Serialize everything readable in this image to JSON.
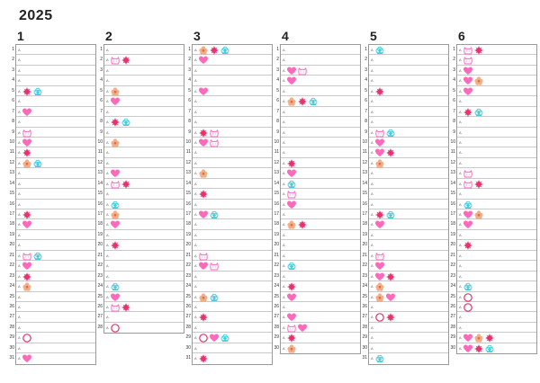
{
  "year": "2025",
  "colors": {
    "heart": "#ff4fb0",
    "sun": "#e8336e",
    "flower": "#f2a073",
    "cat": "#ff66c4",
    "cloud": "#33c7df",
    "circle": "#e0346f"
  },
  "months": [
    {
      "label": "1",
      "days": [
        {
          "n": "1",
          "w": "A",
          "marks": []
        },
        {
          "n": "2",
          "w": "A",
          "marks": []
        },
        {
          "n": "3",
          "w": "A",
          "marks": []
        },
        {
          "n": "4",
          "w": "A",
          "marks": []
        },
        {
          "n": "5",
          "w": "A",
          "marks": [
            "sun",
            "cloud"
          ]
        },
        {
          "n": "6",
          "w": "A",
          "marks": []
        },
        {
          "n": "7",
          "w": "A",
          "marks": [
            "heart"
          ]
        },
        {
          "n": "8",
          "w": "A",
          "marks": []
        },
        {
          "n": "9",
          "w": "A",
          "marks": [
            "cat"
          ]
        },
        {
          "n": "10",
          "w": "A",
          "marks": [
            "heart"
          ]
        },
        {
          "n": "11",
          "w": "A",
          "marks": [
            "sun"
          ]
        },
        {
          "n": "12",
          "w": "A",
          "marks": [
            "flower",
            "cloud"
          ]
        },
        {
          "n": "13",
          "w": "A",
          "marks": []
        },
        {
          "n": "14",
          "w": "A",
          "marks": []
        },
        {
          "n": "15",
          "w": "A",
          "marks": []
        },
        {
          "n": "16",
          "w": "A",
          "marks": []
        },
        {
          "n": "17",
          "w": "A",
          "marks": [
            "sun"
          ]
        },
        {
          "n": "18",
          "w": "A",
          "marks": [
            "heart"
          ]
        },
        {
          "n": "19",
          "w": "A",
          "marks": []
        },
        {
          "n": "20",
          "w": "A",
          "marks": []
        },
        {
          "n": "21",
          "w": "A",
          "marks": [
            "cat",
            "cloud"
          ]
        },
        {
          "n": "22",
          "w": "A",
          "marks": [
            "heart"
          ]
        },
        {
          "n": "23",
          "w": "A",
          "marks": [
            "sun"
          ]
        },
        {
          "n": "24",
          "w": "A",
          "marks": [
            "flower"
          ]
        },
        {
          "n": "25",
          "w": "A",
          "marks": []
        },
        {
          "n": "26",
          "w": "A",
          "marks": []
        },
        {
          "n": "27",
          "w": "A",
          "marks": []
        },
        {
          "n": "28",
          "w": "A",
          "marks": []
        },
        {
          "n": "29",
          "w": "A",
          "marks": [
            "circle"
          ]
        },
        {
          "n": "30",
          "w": "A",
          "marks": []
        },
        {
          "n": "31",
          "w": "A",
          "marks": [
            "heart"
          ]
        }
      ]
    },
    {
      "label": "2",
      "days": [
        {
          "n": "1",
          "w": "A",
          "marks": []
        },
        {
          "n": "2",
          "w": "A",
          "marks": [
            "cat",
            "sun"
          ]
        },
        {
          "n": "3",
          "w": "A",
          "marks": []
        },
        {
          "n": "4",
          "w": "A",
          "marks": []
        },
        {
          "n": "5",
          "w": "A",
          "marks": [
            "flower"
          ]
        },
        {
          "n": "6",
          "w": "A",
          "marks": [
            "heart"
          ]
        },
        {
          "n": "7",
          "w": "A",
          "marks": []
        },
        {
          "n": "8",
          "w": "A",
          "marks": [
            "sun",
            "cloud"
          ]
        },
        {
          "n": "9",
          "w": "A",
          "marks": []
        },
        {
          "n": "10",
          "w": "A",
          "marks": [
            "flower"
          ]
        },
        {
          "n": "11",
          "w": "A",
          "marks": []
        },
        {
          "n": "12",
          "w": "A",
          "marks": []
        },
        {
          "n": "13",
          "w": "A",
          "marks": [
            "heart"
          ]
        },
        {
          "n": "14",
          "w": "A",
          "marks": [
            "cat",
            "sun"
          ]
        },
        {
          "n": "15",
          "w": "A",
          "marks": []
        },
        {
          "n": "16",
          "w": "A",
          "marks": [
            "cloud"
          ]
        },
        {
          "n": "17",
          "w": "A",
          "marks": [
            "flower"
          ]
        },
        {
          "n": "18",
          "w": "A",
          "marks": [
            "heart"
          ]
        },
        {
          "n": "19",
          "w": "A",
          "marks": []
        },
        {
          "n": "20",
          "w": "A",
          "marks": [
            "sun"
          ]
        },
        {
          "n": "21",
          "w": "A",
          "marks": []
        },
        {
          "n": "22",
          "w": "A",
          "marks": []
        },
        {
          "n": "23",
          "w": "A",
          "marks": []
        },
        {
          "n": "24",
          "w": "A",
          "marks": [
            "cloud"
          ]
        },
        {
          "n": "25",
          "w": "A",
          "marks": [
            "heart"
          ]
        },
        {
          "n": "26",
          "w": "A",
          "marks": [
            "cat",
            "sun"
          ]
        },
        {
          "n": "27",
          "w": "A",
          "marks": []
        },
        {
          "n": "28",
          "w": "A",
          "marks": [
            "circle"
          ]
        }
      ]
    },
    {
      "label": "3",
      "days": [
        {
          "n": "1",
          "w": "A",
          "marks": [
            "flower",
            "sun",
            "cloud"
          ]
        },
        {
          "n": "2",
          "w": "A",
          "marks": [
            "heart"
          ]
        },
        {
          "n": "3",
          "w": "A",
          "marks": []
        },
        {
          "n": "4",
          "w": "A",
          "marks": []
        },
        {
          "n": "5",
          "w": "A",
          "marks": [
            "heart"
          ]
        },
        {
          "n": "6",
          "w": "A",
          "marks": []
        },
        {
          "n": "7",
          "w": "A",
          "marks": []
        },
        {
          "n": "8",
          "w": "A",
          "marks": []
        },
        {
          "n": "9",
          "w": "A",
          "marks": [
            "sun",
            "cat"
          ]
        },
        {
          "n": "10",
          "w": "A",
          "marks": [
            "heart",
            "cat"
          ]
        },
        {
          "n": "11",
          "w": "A",
          "marks": []
        },
        {
          "n": "12",
          "w": "A",
          "marks": []
        },
        {
          "n": "13",
          "w": "A",
          "marks": [
            "flower"
          ]
        },
        {
          "n": "14",
          "w": "A",
          "marks": []
        },
        {
          "n": "15",
          "w": "A",
          "marks": [
            "sun"
          ]
        },
        {
          "n": "16",
          "w": "A",
          "marks": []
        },
        {
          "n": "17",
          "w": "A",
          "marks": [
            "heart",
            "cloud"
          ]
        },
        {
          "n": "18",
          "w": "A",
          "marks": []
        },
        {
          "n": "19",
          "w": "A",
          "marks": []
        },
        {
          "n": "20",
          "w": "A",
          "marks": []
        },
        {
          "n": "21",
          "w": "A",
          "marks": [
            "cat"
          ]
        },
        {
          "n": "22",
          "w": "A",
          "marks": [
            "heart",
            "cat"
          ]
        },
        {
          "n": "23",
          "w": "A",
          "marks": []
        },
        {
          "n": "24",
          "w": "A",
          "marks": []
        },
        {
          "n": "25",
          "w": "A",
          "marks": [
            "flower",
            "cloud"
          ]
        },
        {
          "n": "26",
          "w": "A",
          "marks": []
        },
        {
          "n": "27",
          "w": "A",
          "marks": [
            "sun"
          ]
        },
        {
          "n": "28",
          "w": "A",
          "marks": []
        },
        {
          "n": "29",
          "w": "A",
          "marks": [
            "circle",
            "heart",
            "cloud"
          ]
        },
        {
          "n": "30",
          "w": "A",
          "marks": []
        },
        {
          "n": "31",
          "w": "A",
          "marks": [
            "sun"
          ]
        }
      ]
    },
    {
      "label": "4",
      "days": [
        {
          "n": "1",
          "w": "A",
          "marks": []
        },
        {
          "n": "2",
          "w": "A",
          "marks": []
        },
        {
          "n": "3",
          "w": "A",
          "marks": [
            "heart",
            "cat"
          ]
        },
        {
          "n": "4",
          "w": "A",
          "marks": [
            "heart"
          ]
        },
        {
          "n": "5",
          "w": "A",
          "marks": []
        },
        {
          "n": "6",
          "w": "A",
          "marks": [
            "flower",
            "sun",
            "cloud"
          ]
        },
        {
          "n": "7",
          "w": "A",
          "marks": []
        },
        {
          "n": "8",
          "w": "A",
          "marks": []
        },
        {
          "n": "9",
          "w": "A",
          "marks": []
        },
        {
          "n": "10",
          "w": "A",
          "marks": []
        },
        {
          "n": "11",
          "w": "A",
          "marks": []
        },
        {
          "n": "12",
          "w": "A",
          "marks": [
            "sun"
          ]
        },
        {
          "n": "13",
          "w": "A",
          "marks": [
            "heart"
          ]
        },
        {
          "n": "14",
          "w": "A",
          "marks": [
            "cloud"
          ]
        },
        {
          "n": "15",
          "w": "A",
          "marks": [
            "cat"
          ]
        },
        {
          "n": "16",
          "w": "A",
          "marks": [
            "heart"
          ]
        },
        {
          "n": "17",
          "w": "A",
          "marks": []
        },
        {
          "n": "18",
          "w": "A",
          "marks": [
            "flower",
            "sun"
          ]
        },
        {
          "n": "19",
          "w": "A",
          "marks": []
        },
        {
          "n": "20",
          "w": "A",
          "marks": []
        },
        {
          "n": "21",
          "w": "A",
          "marks": []
        },
        {
          "n": "22",
          "w": "A",
          "marks": [
            "cloud"
          ]
        },
        {
          "n": "23",
          "w": "A",
          "marks": []
        },
        {
          "n": "24",
          "w": "A",
          "marks": [
            "sun"
          ]
        },
        {
          "n": "25",
          "w": "A",
          "marks": [
            "heart"
          ]
        },
        {
          "n": "26",
          "w": "A",
          "marks": []
        },
        {
          "n": "27",
          "w": "A",
          "marks": [
            "heart"
          ]
        },
        {
          "n": "28",
          "w": "A",
          "marks": [
            "cat",
            "heart"
          ]
        },
        {
          "n": "29",
          "w": "A",
          "marks": [
            "sun"
          ]
        },
        {
          "n": "30",
          "w": "A",
          "marks": [
            "flower"
          ]
        }
      ]
    },
    {
      "label": "5",
      "days": [
        {
          "n": "1",
          "w": "A",
          "marks": [
            "cloud"
          ]
        },
        {
          "n": "2",
          "w": "A",
          "marks": []
        },
        {
          "n": "3",
          "w": "A",
          "marks": []
        },
        {
          "n": "4",
          "w": "A",
          "marks": []
        },
        {
          "n": "5",
          "w": "A",
          "marks": [
            "sun"
          ]
        },
        {
          "n": "6",
          "w": "A",
          "marks": []
        },
        {
          "n": "7",
          "w": "A",
          "marks": []
        },
        {
          "n": "8",
          "w": "A",
          "marks": []
        },
        {
          "n": "9",
          "w": "A",
          "marks": [
            "cat",
            "cloud"
          ]
        },
        {
          "n": "10",
          "w": "A",
          "marks": [
            "heart"
          ]
        },
        {
          "n": "11",
          "w": "A",
          "marks": [
            "heart",
            "sun"
          ]
        },
        {
          "n": "12",
          "w": "A",
          "marks": [
            "flower"
          ]
        },
        {
          "n": "13",
          "w": "A",
          "marks": []
        },
        {
          "n": "14",
          "w": "A",
          "marks": []
        },
        {
          "n": "15",
          "w": "A",
          "marks": []
        },
        {
          "n": "16",
          "w": "A",
          "marks": []
        },
        {
          "n": "17",
          "w": "A",
          "marks": [
            "sun",
            "cloud"
          ]
        },
        {
          "n": "18",
          "w": "A",
          "marks": [
            "heart"
          ]
        },
        {
          "n": "19",
          "w": "A",
          "marks": []
        },
        {
          "n": "20",
          "w": "A",
          "marks": []
        },
        {
          "n": "21",
          "w": "A",
          "marks": [
            "cat"
          ]
        },
        {
          "n": "22",
          "w": "A",
          "marks": [
            "heart"
          ]
        },
        {
          "n": "23",
          "w": "A",
          "marks": [
            "heart",
            "sun"
          ]
        },
        {
          "n": "24",
          "w": "A",
          "marks": [
            "flower"
          ]
        },
        {
          "n": "25",
          "w": "A",
          "marks": [
            "flower",
            "heart"
          ]
        },
        {
          "n": "26",
          "w": "A",
          "marks": []
        },
        {
          "n": "27",
          "w": "A",
          "marks": [
            "circle",
            "sun"
          ]
        },
        {
          "n": "28",
          "w": "A",
          "marks": []
        },
        {
          "n": "29",
          "w": "A",
          "marks": []
        },
        {
          "n": "30",
          "w": "A",
          "marks": []
        },
        {
          "n": "31",
          "w": "A",
          "marks": [
            "cloud"
          ]
        }
      ]
    },
    {
      "label": "6",
      "days": [
        {
          "n": "1",
          "w": "A",
          "marks": [
            "cat",
            "sun"
          ]
        },
        {
          "n": "2",
          "w": "A",
          "marks": [
            "cat"
          ]
        },
        {
          "n": "3",
          "w": "A",
          "marks": [
            "heart"
          ]
        },
        {
          "n": "4",
          "w": "A",
          "marks": [
            "heart",
            "flower"
          ]
        },
        {
          "n": "5",
          "w": "A",
          "marks": [
            "heart"
          ]
        },
        {
          "n": "6",
          "w": "A",
          "marks": []
        },
        {
          "n": "7",
          "w": "A",
          "marks": [
            "sun",
            "cloud"
          ]
        },
        {
          "n": "8",
          "w": "A",
          "marks": []
        },
        {
          "n": "9",
          "w": "A",
          "marks": []
        },
        {
          "n": "10",
          "w": "A",
          "marks": []
        },
        {
          "n": "11",
          "w": "A",
          "marks": []
        },
        {
          "n": "12",
          "w": "A",
          "marks": []
        },
        {
          "n": "13",
          "w": "A",
          "marks": [
            "cat"
          ]
        },
        {
          "n": "14",
          "w": "A",
          "marks": [
            "cat",
            "sun"
          ]
        },
        {
          "n": "15",
          "w": "A",
          "marks": []
        },
        {
          "n": "16",
          "w": "A",
          "marks": [
            "cloud"
          ]
        },
        {
          "n": "17",
          "w": "A",
          "marks": [
            "heart",
            "flower"
          ]
        },
        {
          "n": "18",
          "w": "A",
          "marks": [
            "heart"
          ]
        },
        {
          "n": "19",
          "w": "A",
          "marks": []
        },
        {
          "n": "20",
          "w": "A",
          "marks": [
            "sun"
          ]
        },
        {
          "n": "21",
          "w": "A",
          "marks": []
        },
        {
          "n": "22",
          "w": "A",
          "marks": []
        },
        {
          "n": "23",
          "w": "A",
          "marks": []
        },
        {
          "n": "24",
          "w": "A",
          "marks": [
            "cloud"
          ]
        },
        {
          "n": "25",
          "w": "A",
          "marks": [
            "circle"
          ]
        },
        {
          "n": "26",
          "w": "A",
          "marks": [
            "circle"
          ]
        },
        {
          "n": "27",
          "w": "A",
          "marks": []
        },
        {
          "n": "28",
          "w": "A",
          "marks": []
        },
        {
          "n": "29",
          "w": "A",
          "marks": [
            "heart",
            "flower",
            "sun"
          ]
        },
        {
          "n": "30",
          "w": "A",
          "marks": [
            "heart",
            "sun",
            "cloud"
          ]
        }
      ]
    }
  ]
}
